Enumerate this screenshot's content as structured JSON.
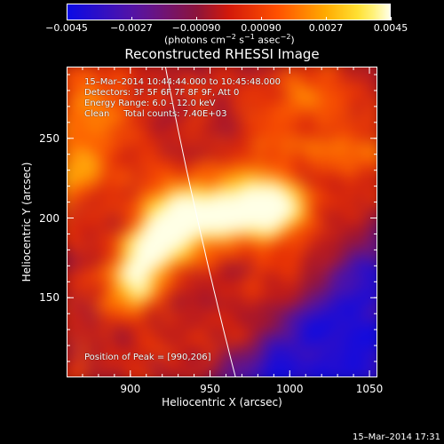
{
  "colorbar": {
    "tick_labels": [
      "−0.0045",
      "−0.0027",
      "−0.00090",
      "0.00090",
      "0.0027",
      "0.0045"
    ],
    "range": [
      -0.0045,
      0.0045
    ],
    "units_prefix": "(photons cm",
    "units_exp1": "−2",
    "units_mid": " s",
    "units_exp2": "−1",
    "units_mid2": " asec",
    "units_exp3": "−2",
    "units_suffix": ")"
  },
  "chart_data": {
    "type": "heatmap",
    "title": "Reconstructed RHESSI Image",
    "xlabel": "Heliocentric X (arcsec)",
    "ylabel": "Heliocentric Y (arcsec)",
    "xlim": [
      860,
      1055
    ],
    "ylim": [
      100,
      295
    ],
    "xticks": [
      900,
      950,
      1000,
      1050
    ],
    "yticks": [
      150,
      200,
      250
    ],
    "xtick_labels": [
      "900",
      "950",
      "1000",
      "1050"
    ],
    "ytick_labels": [
      "150",
      "200",
      "250"
    ],
    "peak": [
      990,
      206
    ],
    "colormap": "hot",
    "limb_line": true
  },
  "annotations": {
    "time_range": "15–Mar–2014 10:44:44.000 to 10:45:48.000",
    "detectors": "Detectors: 3F 5F 6F 7F 8F 9F, Att 0",
    "energy": "Energy Range: 6.0 – 12.0 keV",
    "clean": "Clean     Total counts: 7.40E+03",
    "peak": "Position of Peak = [990,206]"
  },
  "footer": "15–Mar–2014 17:31"
}
